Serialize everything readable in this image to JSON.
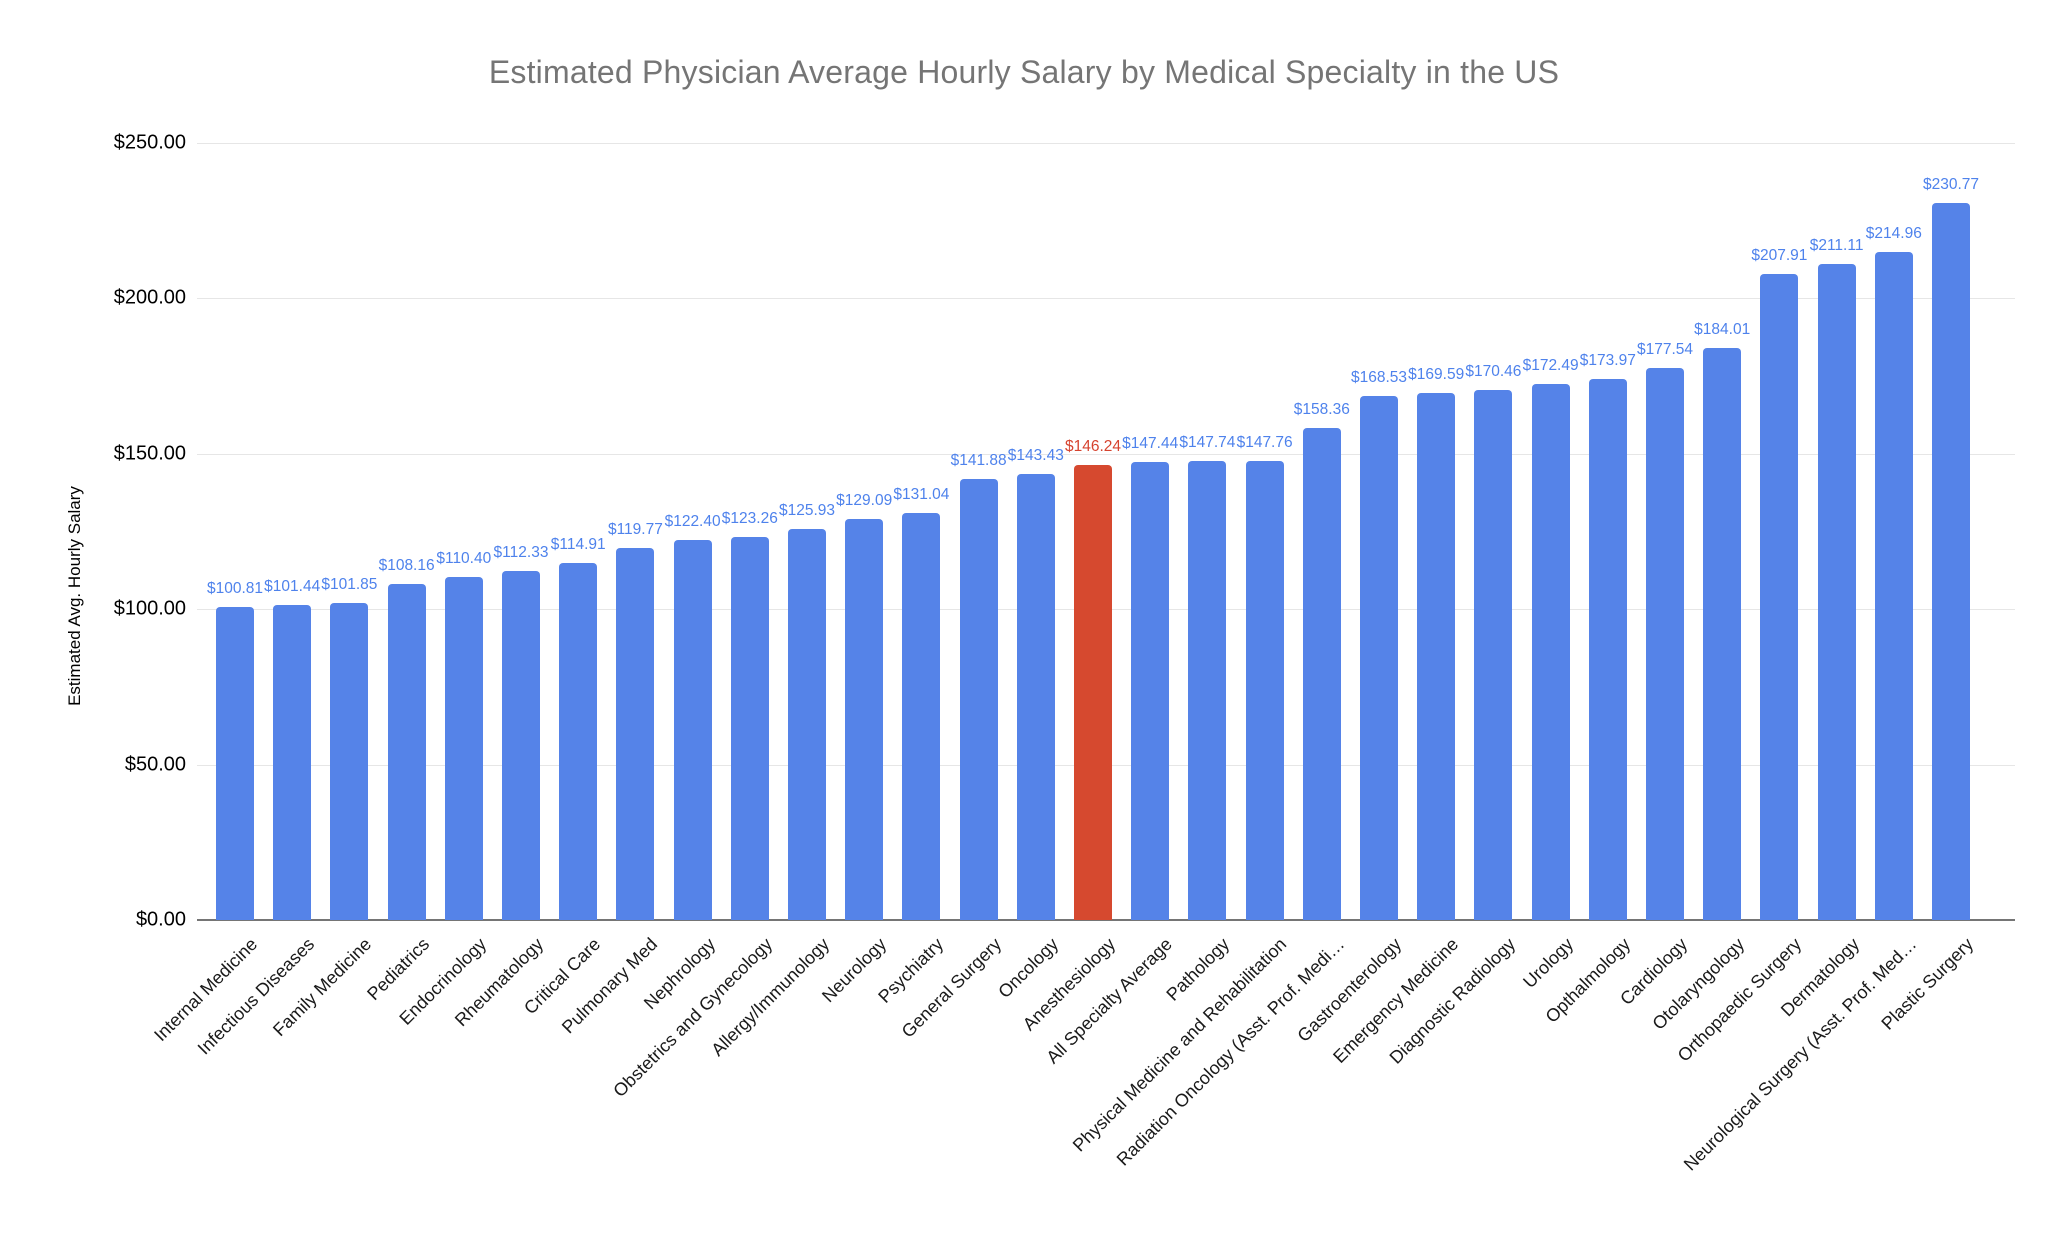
{
  "colors": {
    "background": "#ffffff",
    "title_text": "#757575",
    "axis_text": "#000000",
    "x_label_text": "#1a1a1a",
    "gridline": "#e6e6e6",
    "baseline": "#757575",
    "bar_blue": "#5583e8",
    "bar_red": "#d6492f",
    "value_label_blue": "#4e82ec",
    "value_label_red": "#d6432f"
  },
  "chart_data": {
    "type": "bar",
    "title": "Estimated Physician Average Hourly Salary by Medical Specialty in the US",
    "xlabel": "",
    "ylabel": "Estimated Avg. Hourly Salary",
    "ylim": [
      0,
      250
    ],
    "grid": true,
    "legend": "none",
    "y_tick_values": [
      0,
      50,
      100,
      150,
      200,
      250
    ],
    "y_tick_labels": [
      "$0.00",
      "$50.00",
      "$100.00",
      "$150.00",
      "$200.00",
      "$250.00"
    ],
    "highlight_index": 15,
    "categories": [
      "Internal Medicine",
      "Infectious Diseases",
      "Family Medicine",
      "Pediatrics",
      "Endocrinology",
      "Rheumatology",
      "Critical Care",
      "Pulmonary Med",
      "Nephrology",
      "Obstetrics and Gynecology",
      "Allergy/Immunology",
      "Neurology",
      "Psychiatry",
      "General Surgery",
      "Oncology",
      "Anesthesiology",
      "All Specialty Average",
      "Pathology",
      "Physical Medicine and Rehabilitation",
      "Radiation Oncology (Asst. Prof. Medi…",
      "Gastroenterology",
      "Emergency Medicine",
      "Diagnostic Radiology",
      "Urology",
      "Opthalmology",
      "Cardiology",
      "Otolaryngology",
      "Orthopaedic Surgery",
      "Dermatology",
      "Neurological Surgery (Asst. Prof. Med…",
      "Plastic Surgery"
    ],
    "values": [
      100.81,
      101.44,
      101.85,
      108.16,
      110.4,
      112.33,
      114.91,
      119.77,
      122.4,
      123.26,
      125.93,
      129.09,
      131.04,
      141.88,
      143.43,
      146.24,
      147.44,
      147.74,
      147.76,
      158.36,
      168.53,
      169.59,
      170.46,
      172.49,
      173.97,
      177.54,
      184.01,
      207.91,
      211.11,
      214.96,
      230.77
    ],
    "value_labels": [
      "$100.81",
      "$101.44",
      "$101.85",
      "$108.16",
      "$110.40",
      "$112.33",
      "$114.91",
      "$119.77",
      "$122.40",
      "$123.26",
      "$125.93",
      "$129.09",
      "$131.04",
      "$141.88",
      "$143.43",
      "$146.24",
      "$147.44",
      "$147.74",
      "$147.76",
      "$158.36",
      "$168.53",
      "$169.59",
      "$170.46",
      "$172.49",
      "$173.97",
      "$177.54",
      "$184.01",
      "$207.91",
      "$211.11",
      "$214.96",
      "$230.77"
    ]
  }
}
